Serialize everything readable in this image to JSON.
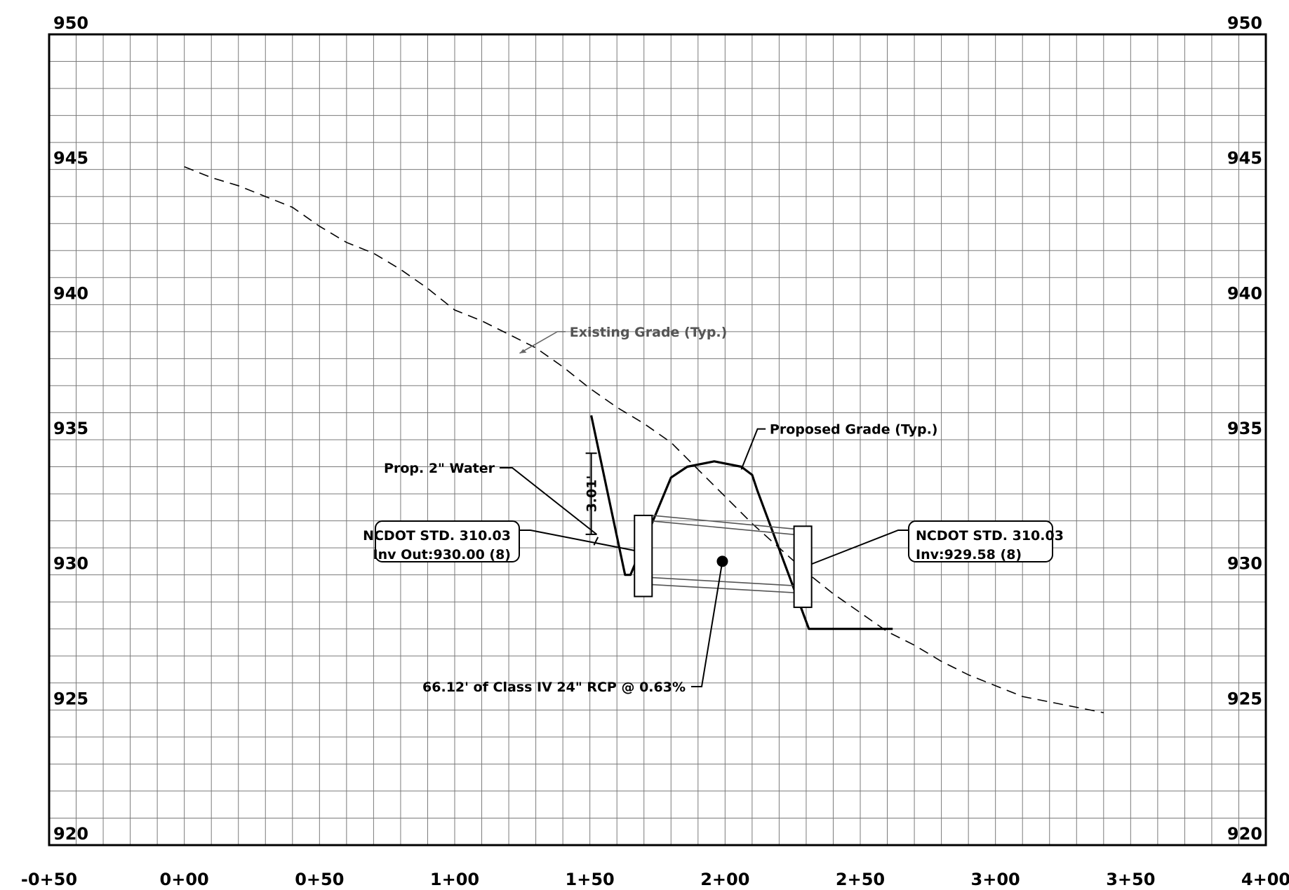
{
  "chart_data": {
    "type": "profile",
    "x_range": [
      -50,
      400
    ],
    "y_range": [
      920,
      950
    ],
    "x_ticks": [
      {
        "value": -50,
        "label": "-0+50"
      },
      {
        "value": 0,
        "label": "0+00"
      },
      {
        "value": 50,
        "label": "0+50"
      },
      {
        "value": 100,
        "label": "1+00"
      },
      {
        "value": 150,
        "label": "1+50"
      },
      {
        "value": 200,
        "label": "2+00"
      },
      {
        "value": 250,
        "label": "2+50"
      },
      {
        "value": 300,
        "label": "3+00"
      },
      {
        "value": 350,
        "label": "3+50"
      },
      {
        "value": 400,
        "label": "4+00"
      }
    ],
    "y_ticks": [
      {
        "value": 920,
        "label": "920"
      },
      {
        "value": 925,
        "label": "925"
      },
      {
        "value": 930,
        "label": "930"
      },
      {
        "value": 935,
        "label": "935"
      },
      {
        "value": 940,
        "label": "940"
      },
      {
        "value": 945,
        "label": "945"
      },
      {
        "value": 950,
        "label": "950"
      }
    ],
    "grid": true,
    "grid_minor_step_x": 10,
    "grid_minor_step_y": 1,
    "series": [
      {
        "name": "Existing Grade (Typ.)",
        "style": "dashed",
        "points": [
          [
            0,
            945.1
          ],
          [
            10,
            944.7
          ],
          [
            20,
            944.4
          ],
          [
            30,
            944.0
          ],
          [
            40,
            943.6
          ],
          [
            50,
            942.9
          ],
          [
            60,
            942.3
          ],
          [
            70,
            941.9
          ],
          [
            80,
            941.3
          ],
          [
            90,
            940.6
          ],
          [
            100,
            939.8
          ],
          [
            110,
            939.4
          ],
          [
            120,
            938.9
          ],
          [
            130,
            938.4
          ],
          [
            140,
            937.7
          ],
          [
            150,
            936.9
          ],
          [
            160,
            936.2
          ],
          [
            170,
            935.6
          ],
          [
            180,
            934.9
          ],
          [
            190,
            933.9
          ],
          [
            200,
            932.9
          ],
          [
            210,
            931.9
          ],
          [
            220,
            931.0
          ],
          [
            230,
            930.1
          ],
          [
            240,
            929.3
          ],
          [
            250,
            928.6
          ],
          [
            260,
            927.9
          ],
          [
            270,
            927.4
          ],
          [
            280,
            926.8
          ],
          [
            290,
            926.3
          ],
          [
            300,
            925.9
          ],
          [
            310,
            925.5
          ],
          [
            320,
            925.3
          ],
          [
            330,
            925.1
          ],
          [
            340,
            924.9
          ]
        ]
      },
      {
        "name": "Proposed Grade (Typ.)",
        "style": "solid-bold",
        "points": [
          [
            150.5,
            935.9
          ],
          [
            163,
            930.0
          ],
          [
            165,
            930.0
          ],
          [
            180,
            933.6
          ],
          [
            186,
            934.0
          ],
          [
            196,
            934.2
          ],
          [
            206,
            934.0
          ],
          [
            210,
            933.7
          ],
          [
            212,
            933.1
          ],
          [
            231,
            928.0
          ],
          [
            262,
            928.0
          ]
        ]
      }
    ],
    "annotations": [
      {
        "text": "Existing Grade (Typ.)"
      },
      {
        "text": "Proposed Grade (Typ.)"
      },
      {
        "text": "Prop. 2\" Water"
      },
      {
        "text": "3.01'"
      },
      {
        "lines": [
          "NCDOT STD. 310.03",
          "Inv Out:930.00 (8)"
        ]
      },
      {
        "lines": [
          "NCDOT STD. 310.03",
          "Inv:929.58 (8)"
        ]
      },
      {
        "text": "66.12' of Class IV 24\" RCP @ 0.63%"
      }
    ],
    "structures": [
      {
        "station_start": 166.5,
        "station_end": 173,
        "bottom": 929.2,
        "top": 932.2,
        "label_index": 4
      },
      {
        "station_start": 225.5,
        "station_end": 232,
        "bottom": 928.8,
        "top": 931.8,
        "label_index": 5
      }
    ],
    "pipe": {
      "station_start": 173,
      "station_end": 225.5,
      "top_start": 932.2,
      "top_end": 931.7,
      "bottom_start": 929.9,
      "bottom_end": 929.6,
      "label_index": 6
    },
    "water_crossing": {
      "station": 154,
      "elevation": 931.5,
      "clearance_label_index": 3
    }
  }
}
